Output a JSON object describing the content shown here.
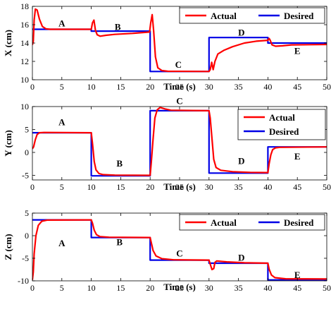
{
  "colors": {
    "actual": "#ff0000",
    "desired": "#0000e6",
    "axes": "#000000"
  },
  "chart_data": [
    {
      "id": "x",
      "type": "line",
      "xlabel": "Time (s)",
      "ylabel": "X (cm)",
      "xlim": [
        0,
        50
      ],
      "ylim": [
        10,
        18
      ],
      "xticks": [
        0,
        5,
        10,
        15,
        20,
        25,
        30,
        35,
        40,
        45,
        50
      ],
      "yticks": [
        10,
        12,
        14,
        16,
        18
      ],
      "grid": false,
      "legend_position": "top-right",
      "series": [
        {
          "name": "Desired",
          "points": [
            [
              0,
              15.5
            ],
            [
              10,
              15.5
            ],
            [
              10,
              15.3
            ],
            [
              20,
              15.3
            ],
            [
              20,
              10.9
            ],
            [
              30,
              10.9
            ],
            [
              30,
              14.6
            ],
            [
              40,
              14.6
            ],
            [
              40,
              14.0
            ],
            [
              50,
              14.0
            ]
          ]
        },
        {
          "name": "Actual",
          "points": [
            [
              0,
              13.8
            ],
            [
              0.15,
              14.2
            ],
            [
              0.3,
              16.5
            ],
            [
              0.5,
              17.7
            ],
            [
              0.8,
              17.6
            ],
            [
              1.2,
              16.6
            ],
            [
              1.7,
              15.8
            ],
            [
              2.3,
              15.55
            ],
            [
              3,
              15.5
            ],
            [
              10,
              15.5
            ],
            [
              10.2,
              16.2
            ],
            [
              10.45,
              16.5
            ],
            [
              10.7,
              15.4
            ],
            [
              11,
              14.9
            ],
            [
              11.5,
              14.75
            ],
            [
              12.5,
              14.85
            ],
            [
              14,
              14.95
            ],
            [
              17,
              15.05
            ],
            [
              19.9,
              15.2
            ],
            [
              20.1,
              16.2
            ],
            [
              20.35,
              17.1
            ],
            [
              20.6,
              15.3
            ],
            [
              20.9,
              12.5
            ],
            [
              21.3,
              11.3
            ],
            [
              22,
              11.0
            ],
            [
              23,
              10.92
            ],
            [
              30,
              10.9
            ],
            [
              30.2,
              11.1
            ],
            [
              30.45,
              11.9
            ],
            [
              30.7,
              11.1
            ],
            [
              31.0,
              12.0
            ],
            [
              31.5,
              12.8
            ],
            [
              32.5,
              13.2
            ],
            [
              34,
              13.6
            ],
            [
              36,
              14.0
            ],
            [
              38,
              14.2
            ],
            [
              40,
              14.3
            ],
            [
              40.2,
              14.5
            ],
            [
              40.4,
              14.3
            ],
            [
              40.7,
              13.8
            ],
            [
              41.3,
              13.65
            ],
            [
              42.5,
              13.7
            ],
            [
              44,
              13.8
            ],
            [
              47,
              13.82
            ],
            [
              50,
              13.85
            ]
          ]
        }
      ],
      "annotations": [
        {
          "text": "A",
          "x": 5,
          "y": 16.2
        },
        {
          "text": "B",
          "x": 14.5,
          "y": 15.8
        },
        {
          "text": "C",
          "x": 24.8,
          "y": 11.7
        },
        {
          "text": "D",
          "x": 35.5,
          "y": 15.2
        },
        {
          "text": "E",
          "x": 45,
          "y": 13.2
        }
      ]
    },
    {
      "id": "y",
      "type": "line",
      "xlabel": "Time (s)",
      "ylabel": "Y (cm)",
      "xlim": [
        0,
        50
      ],
      "ylim": [
        -6,
        10
      ],
      "xticks": [
        0,
        5,
        10,
        15,
        20,
        25,
        30,
        35,
        40,
        45,
        50
      ],
      "yticks": [
        -5,
        0,
        5,
        10
      ],
      "grid": false,
      "legend_position": "top-right",
      "series": [
        {
          "name": "Desired",
          "points": [
            [
              0,
              4.3
            ],
            [
              10,
              4.3
            ],
            [
              10,
              -5.1
            ],
            [
              20,
              -5.1
            ],
            [
              20,
              9.1
            ],
            [
              30,
              9.1
            ],
            [
              30,
              -4.5
            ],
            [
              40,
              -4.5
            ],
            [
              40,
              1.2
            ],
            [
              50,
              1.2
            ]
          ]
        },
        {
          "name": "Actual",
          "points": [
            [
              0,
              0.8
            ],
            [
              0.2,
              1.2
            ],
            [
              0.5,
              2.8
            ],
            [
              0.8,
              3.9
            ],
            [
              1.2,
              4.3
            ],
            [
              2,
              4.35
            ],
            [
              10,
              4.3
            ],
            [
              10.2,
              2.0
            ],
            [
              10.5,
              -2.0
            ],
            [
              10.8,
              -3.8
            ],
            [
              11.3,
              -4.6
            ],
            [
              12,
              -4.85
            ],
            [
              14,
              -4.95
            ],
            [
              20,
              -5.0
            ],
            [
              20.2,
              -2.0
            ],
            [
              20.5,
              3.0
            ],
            [
              20.8,
              7.5
            ],
            [
              21.2,
              9.3
            ],
            [
              21.7,
              9.8
            ],
            [
              22.5,
              9.5
            ],
            [
              23.5,
              9.2
            ],
            [
              30,
              9.1
            ],
            [
              30.2,
              7.5
            ],
            [
              30.5,
              3.0
            ],
            [
              30.8,
              -1.5
            ],
            [
              31.2,
              -3.3
            ],
            [
              32,
              -3.9
            ],
            [
              34,
              -4.2
            ],
            [
              37,
              -4.35
            ],
            [
              40,
              -4.4
            ],
            [
              40.2,
              -2.5
            ],
            [
              40.5,
              -0.5
            ],
            [
              40.8,
              0.6
            ],
            [
              41.3,
              1.0
            ],
            [
              42,
              1.1
            ],
            [
              50,
              1.2
            ]
          ]
        }
      ],
      "annotations": [
        {
          "text": "A",
          "x": 5,
          "y": 6.7
        },
        {
          "text": "B",
          "x": 14.8,
          "y": -2.3
        },
        {
          "text": "C",
          "x": 25,
          "y": 11.3
        },
        {
          "text": "D",
          "x": 35.5,
          "y": -1.8
        },
        {
          "text": "E",
          "x": 45,
          "y": -0.8
        }
      ]
    },
    {
      "id": "z",
      "type": "line",
      "xlabel": "Time (s)",
      "ylabel": "Z (cm)",
      "xlim": [
        0,
        50
      ],
      "ylim": [
        -10,
        5
      ],
      "xticks": [
        0,
        5,
        10,
        15,
        20,
        25,
        30,
        35,
        40,
        45,
        50
      ],
      "yticks": [
        -10,
        -5,
        0,
        5
      ],
      "grid": false,
      "legend_position": "top-right",
      "series": [
        {
          "name": "Desired",
          "points": [
            [
              0,
              3.5
            ],
            [
              10,
              3.5
            ],
            [
              10,
              -0.4
            ],
            [
              20,
              -0.4
            ],
            [
              20,
              -5.4
            ],
            [
              30,
              -5.4
            ],
            [
              30,
              -6.1
            ],
            [
              40,
              -6.1
            ],
            [
              40,
              -9.8
            ],
            [
              50,
              -9.8
            ]
          ]
        },
        {
          "name": "Actual",
          "points": [
            [
              0,
              -9.8
            ],
            [
              0.15,
              -8.0
            ],
            [
              0.3,
              -4.0
            ],
            [
              0.6,
              0.0
            ],
            [
              1.0,
              2.3
            ],
            [
              1.6,
              3.2
            ],
            [
              2.5,
              3.45
            ],
            [
              10,
              3.5
            ],
            [
              10.2,
              2.8
            ],
            [
              10.5,
              1.2
            ],
            [
              10.9,
              0.2
            ],
            [
              11.5,
              -0.2
            ],
            [
              13,
              -0.35
            ],
            [
              20,
              -0.4
            ],
            [
              20.2,
              -1.6
            ],
            [
              20.5,
              -3.3
            ],
            [
              21,
              -4.5
            ],
            [
              22,
              -5.1
            ],
            [
              24,
              -5.35
            ],
            [
              30,
              -5.4
            ],
            [
              30.2,
              -6.3
            ],
            [
              30.5,
              -7.5
            ],
            [
              30.8,
              -7.3
            ],
            [
              31,
              -5.9
            ],
            [
              31.3,
              -5.6
            ],
            [
              33,
              -5.8
            ],
            [
              36,
              -6.0
            ],
            [
              40,
              -6.1
            ],
            [
              40.2,
              -7.4
            ],
            [
              40.6,
              -8.7
            ],
            [
              41.2,
              -9.3
            ],
            [
              43,
              -9.55
            ],
            [
              50,
              -9.6
            ]
          ]
        }
      ],
      "annotations": [
        {
          "text": "A",
          "x": 5,
          "y": -1.6
        },
        {
          "text": "B",
          "x": 14.8,
          "y": -1.3
        },
        {
          "text": "C",
          "x": 25,
          "y": -3.8
        },
        {
          "text": "D",
          "x": 35.5,
          "y": -4.8
        },
        {
          "text": "E",
          "x": 45,
          "y": -8.6
        }
      ]
    }
  ]
}
